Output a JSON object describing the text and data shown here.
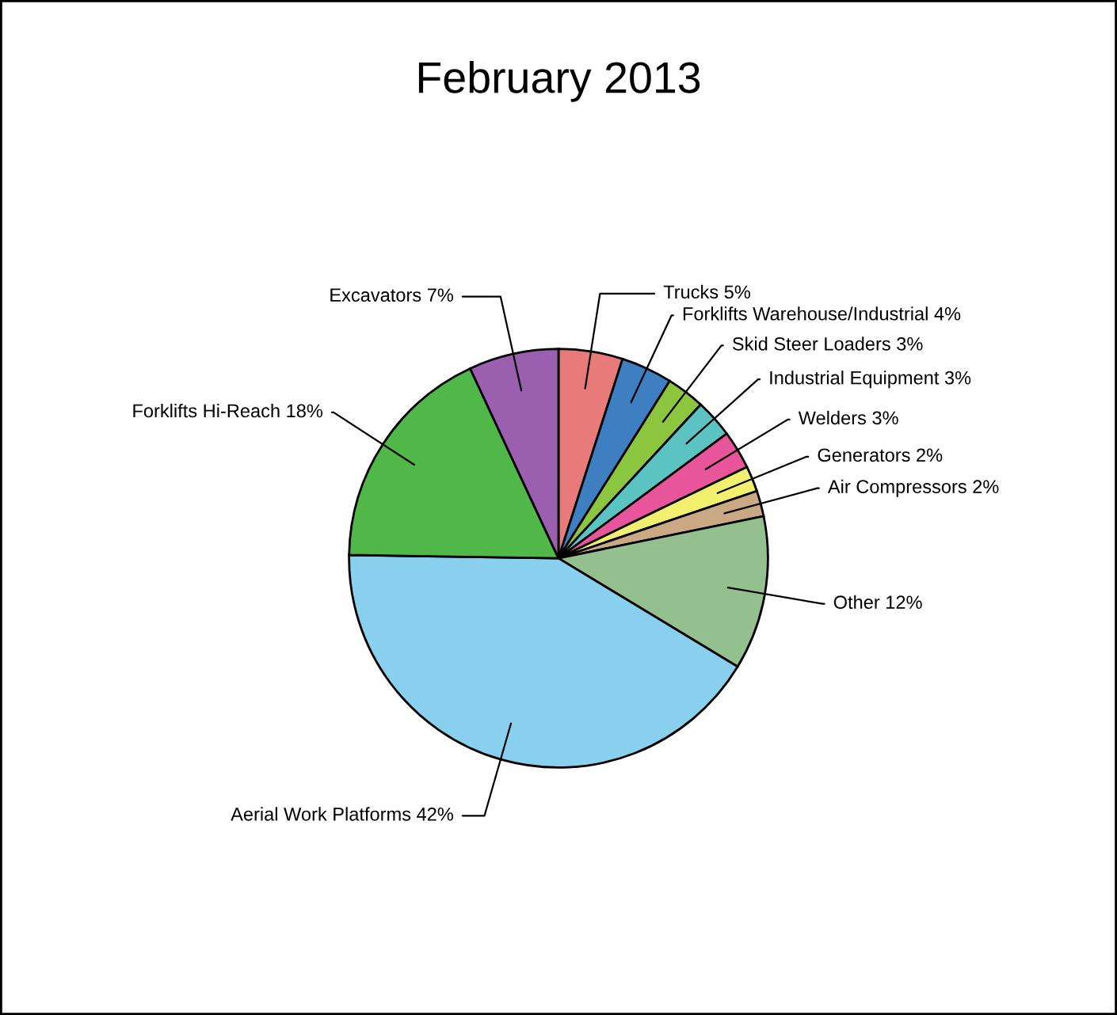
{
  "chart_data": {
    "type": "pie",
    "title": "February 2013",
    "categories": [
      "Trucks",
      "Forklifts Warehouse/Industrial",
      "Skid Steer Loaders",
      "Industrial Equipment",
      "Welders",
      "Generators",
      "Air Compressors",
      "Other",
      "Aerial Work Platforms",
      "Forklifts Hi-Reach",
      "Excavators"
    ],
    "values": [
      5,
      4,
      3,
      3,
      3,
      2,
      2,
      12,
      42,
      18,
      7
    ],
    "value_labels": [
      "5%",
      "4%",
      "3%",
      "3%",
      "3%",
      "2%",
      "2%",
      "12%",
      "42%",
      "18%",
      "7%"
    ],
    "colors": [
      "#e87a7a",
      "#3d7fc1",
      "#8cc63f",
      "#5cc3c3",
      "#e8559a",
      "#f2ee6e",
      "#c9a883",
      "#93c08e",
      "#88d0ee",
      "#4fb848",
      "#9a5fae"
    ],
    "legend": false
  }
}
